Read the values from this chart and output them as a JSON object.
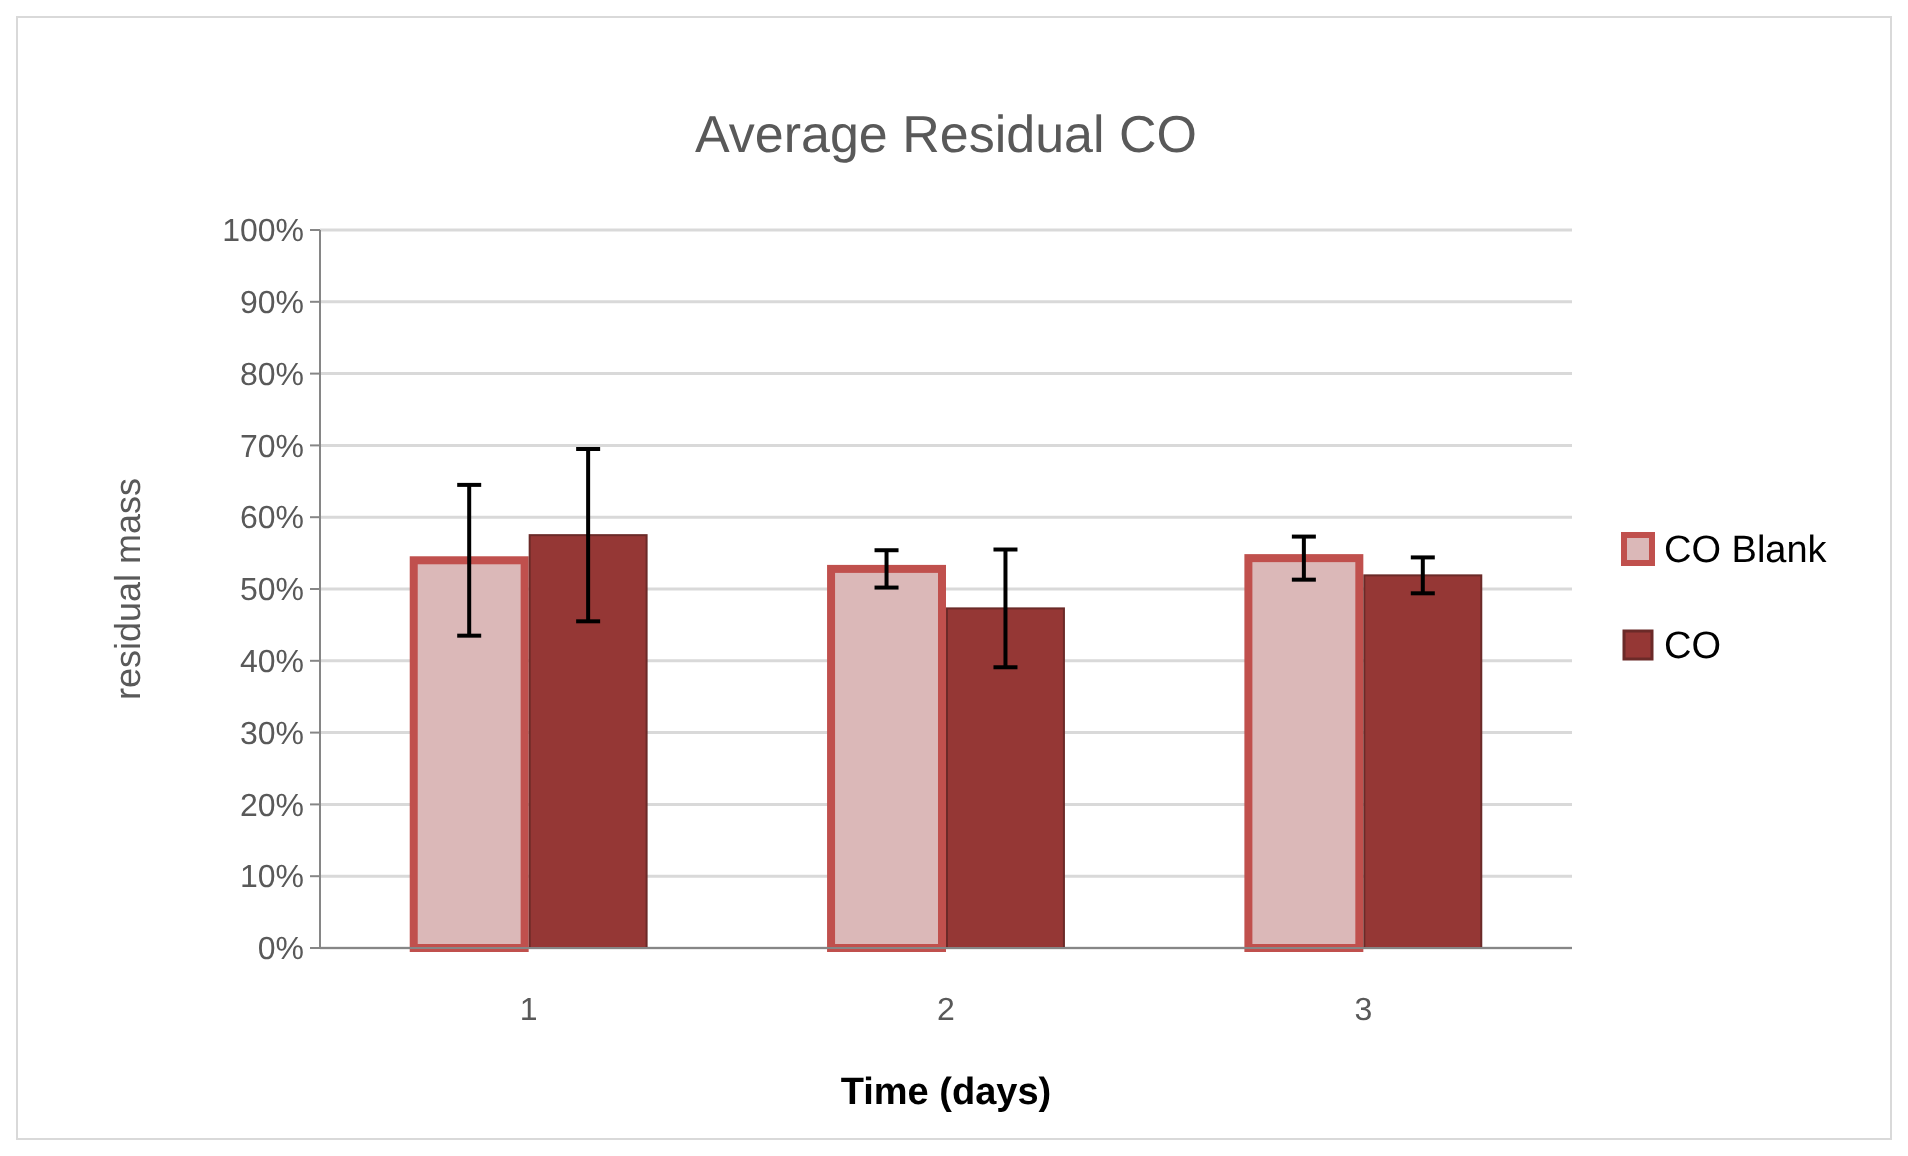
{
  "chart_data": {
    "type": "bar",
    "title": "Average Residual CO",
    "xlabel": "Time (days)",
    "ylabel": "residual mass",
    "categories": [
      "1",
      "2",
      "3"
    ],
    "series": [
      {
        "name": "CO Blank",
        "color": "#dbb8b8",
        "values": [
          54,
          52.8,
          54.3
        ],
        "errors": [
          10.5,
          2.6,
          3
        ]
      },
      {
        "name": "CO",
        "color": "#953735",
        "values": [
          57.5,
          47.3,
          51.9
        ],
        "errors": [
          12,
          8.2,
          2.5
        ]
      }
    ],
    "ylim": [
      0,
      100
    ],
    "yticks": [
      {
        "value": 0,
        "label": "0%"
      },
      {
        "value": 10,
        "label": "10%"
      },
      {
        "value": 20,
        "label": "20%"
      },
      {
        "value": 30,
        "label": "30%"
      },
      {
        "value": 40,
        "label": "40%"
      },
      {
        "value": 50,
        "label": "50%"
      },
      {
        "value": 60,
        "label": "60%"
      },
      {
        "value": 70,
        "label": "70%"
      },
      {
        "value": 80,
        "label": "80%"
      },
      {
        "value": 90,
        "label": "90%"
      },
      {
        "value": 100,
        "label": "100%"
      }
    ],
    "grid": "y",
    "legend": "right"
  }
}
